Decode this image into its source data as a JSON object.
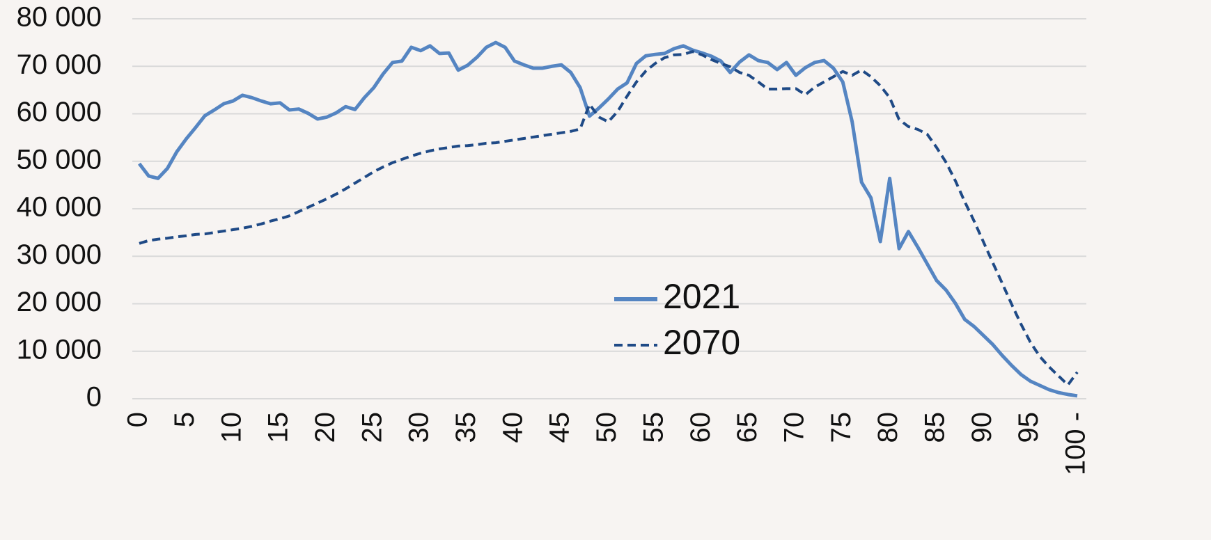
{
  "chart_data": {
    "type": "line",
    "categories": [
      "0",
      null,
      null,
      null,
      null,
      "5",
      null,
      null,
      null,
      null,
      "10",
      null,
      null,
      null,
      null,
      "15",
      null,
      null,
      null,
      null,
      "20",
      null,
      null,
      null,
      null,
      "25",
      null,
      null,
      null,
      null,
      "30",
      null,
      null,
      null,
      null,
      "35",
      null,
      null,
      null,
      null,
      "40",
      null,
      null,
      null,
      null,
      "45",
      null,
      null,
      null,
      null,
      "50",
      null,
      null,
      null,
      null,
      "55",
      null,
      null,
      null,
      null,
      "60",
      null,
      null,
      null,
      null,
      "65",
      null,
      null,
      null,
      null,
      "70",
      null,
      null,
      null,
      null,
      "75",
      null,
      null,
      null,
      null,
      "80",
      null,
      null,
      null,
      null,
      "85",
      null,
      null,
      null,
      null,
      "90",
      null,
      null,
      null,
      null,
      "95",
      null,
      null,
      null,
      null,
      "100 -"
    ],
    "series": [
      {
        "name": "2021",
        "color": "#5585c2",
        "dash": "solid",
        "values": [
          49500,
          46900,
          46400,
          48500,
          52000,
          54700,
          57100,
          59600,
          60800,
          62100,
          62700,
          63900,
          63400,
          62700,
          62100,
          62300,
          60800,
          61000,
          60100,
          58900,
          59300,
          60200,
          61500,
          60900,
          63400,
          65500,
          68400,
          70800,
          71100,
          74000,
          73300,
          74300,
          72700,
          72800,
          69200,
          70200,
          71900,
          74000,
          75000,
          74000,
          71100,
          70300,
          69600,
          69600,
          70000,
          70300,
          68700,
          65500,
          59500,
          61200,
          63100,
          65200,
          66500,
          70600,
          72200,
          72500,
          72700,
          73700,
          74300,
          73400,
          72800,
          72100,
          71100,
          68700,
          70900,
          72400,
          71200,
          70800,
          69300,
          70800,
          68100,
          69700,
          70800,
          71200,
          69600,
          66700,
          58300,
          45600,
          42300,
          33100,
          46400,
          31600,
          35200,
          31900,
          28400,
          24900,
          22900,
          20100,
          16700,
          15200,
          13300,
          11400,
          9100,
          7000,
          5100,
          3700,
          2800,
          1900,
          1300,
          900,
          600
        ]
      },
      {
        "name": "2070",
        "color": "#1f4a86",
        "dash": "dashed",
        "values": [
          32700,
          33300,
          33600,
          33800,
          34100,
          34300,
          34600,
          34700,
          35000,
          35300,
          35600,
          35900,
          36300,
          36800,
          37400,
          37900,
          38500,
          39400,
          40300,
          41200,
          42100,
          43100,
          44200,
          45400,
          46600,
          47800,
          48800,
          49700,
          50400,
          51100,
          51700,
          52200,
          52600,
          52900,
          53200,
          53300,
          53500,
          53800,
          53900,
          54200,
          54500,
          54800,
          55100,
          55400,
          55700,
          56000,
          56300,
          56800,
          62000,
          59300,
          58300,
          60500,
          63700,
          66700,
          69000,
          70600,
          71800,
          72400,
          72500,
          73100,
          72400,
          71400,
          70600,
          69900,
          68700,
          68100,
          66700,
          65200,
          65200,
          65300,
          65300,
          64000,
          65600,
          66700,
          67800,
          68900,
          68100,
          69200,
          67800,
          65900,
          63400,
          58800,
          57300,
          56700,
          55700,
          52900,
          49800,
          45900,
          41500,
          37400,
          33000,
          28600,
          24300,
          19900,
          15700,
          11900,
          8900,
          6700,
          4800,
          2900,
          5600
        ]
      }
    ],
    "ylim": [
      0,
      80000
    ],
    "yticks": [
      0,
      {
        "value": 10000,
        "label": "10 000"
      },
      {
        "value": 20000,
        "label": "20 000"
      },
      {
        "value": 30000,
        "label": "30 000"
      },
      {
        "value": 40000,
        "label": "40 000"
      },
      {
        "value": 50000,
        "label": "50 000"
      },
      {
        "value": 60000,
        "label": "60 000"
      },
      {
        "value": 70000,
        "label": "70 000"
      },
      {
        "value": 80000,
        "label": "80 000"
      }
    ],
    "grid": true,
    "legend": "center"
  }
}
